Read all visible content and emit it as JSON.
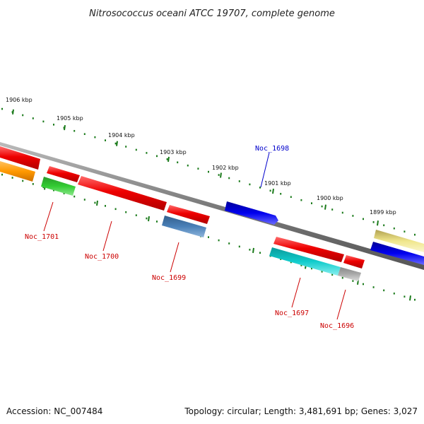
{
  "title": "Nitrosococcus oceani ATCC 19707, complete genome",
  "footer": {
    "accession": "Accession: NC_007484",
    "summary": "Topology: circular; Length: 3,481,691 bp; Genes: 3,027"
  },
  "scale_labels": [
    "1906 kbp",
    "1905 kbp",
    "1904 kbp",
    "1903 kbp",
    "1902 kbp",
    "1901 kbp",
    "1900 kbp",
    "1899 kbp"
  ],
  "gene_labels": [
    {
      "name": "Noc_1698",
      "color": "#0000cc"
    },
    {
      "name": "Noc_1701",
      "color": "#cc0000"
    },
    {
      "name": "Noc_1700",
      "color": "#cc0000"
    },
    {
      "name": "Noc_1699",
      "color": "#cc0000"
    },
    {
      "name": "Noc_1697",
      "color": "#cc0000"
    },
    {
      "name": "Noc_1696",
      "color": "#cc0000"
    }
  ],
  "colors": {
    "backbone": "#8a8a8a",
    "tick": "#1a7a1a",
    "red": "#ee1111",
    "orange": "#ff9900",
    "green": "#33cc33",
    "steelblue": "#4a80b8",
    "blue": "#0000ee",
    "cyan": "#11cccc",
    "gray": "#aaaaaa",
    "khaki": "#f0e68c"
  }
}
